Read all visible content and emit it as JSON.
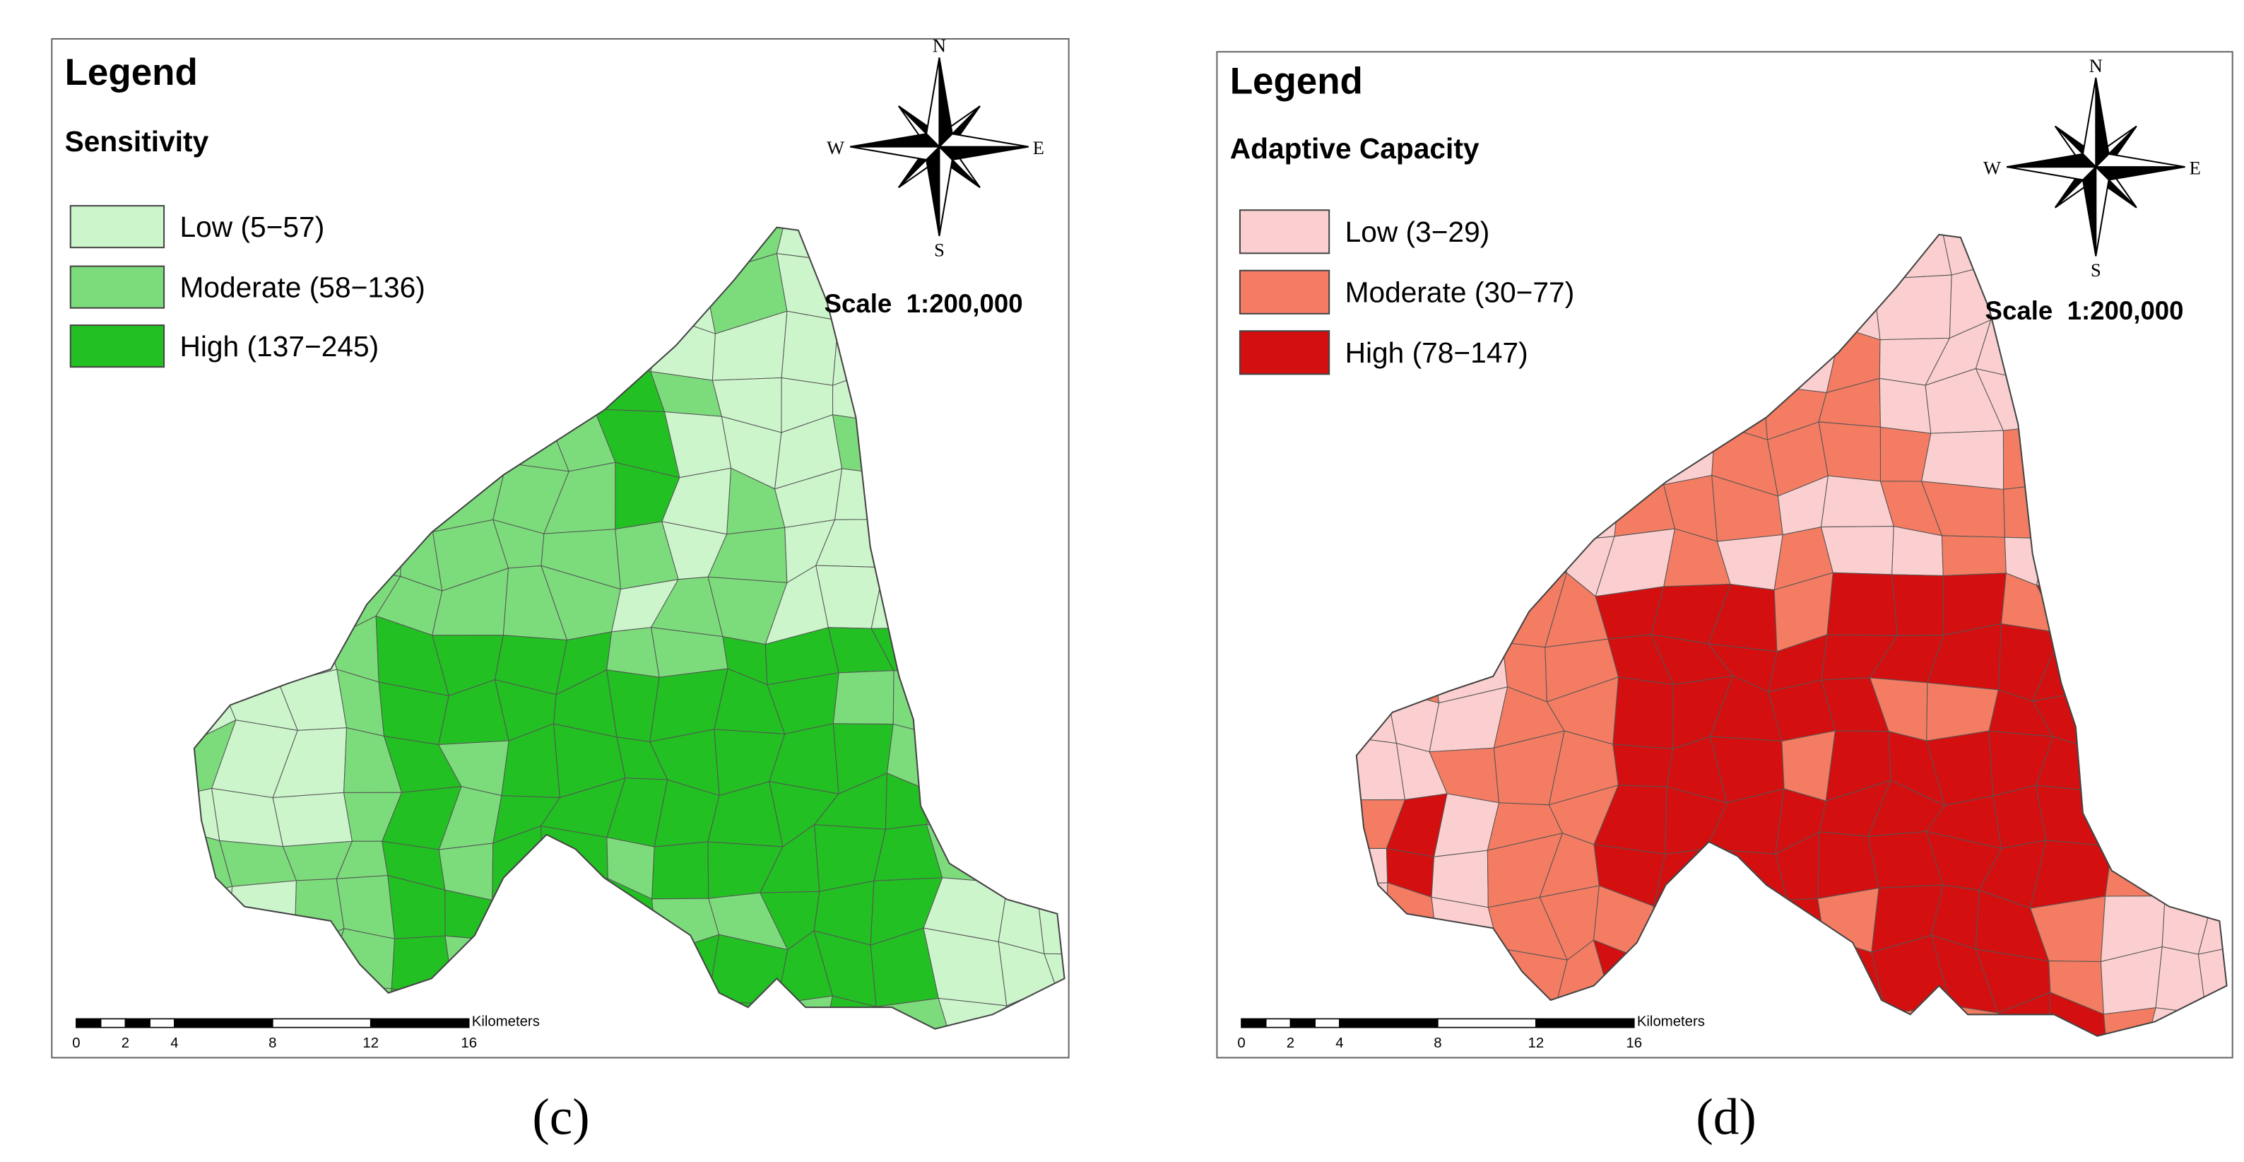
{
  "panels": [
    {
      "legend_title": "Legend",
      "legend_subtitle": "Sensitivity",
      "classes": [
        {
          "label": "Low (5−57)",
          "color": "#ccf5cc"
        },
        {
          "label": "Moderate (58−136)",
          "color": "#7cdc7c"
        },
        {
          "label": "High (137−245)",
          "color": "#22c022"
        }
      ],
      "compass": {
        "north": "N",
        "east": "E",
        "south": "S",
        "west": "W"
      },
      "scale_text": "Scale  1:200,000",
      "scale_bar": {
        "ticks": [
          0,
          2,
          4,
          8,
          12,
          16
        ],
        "unit": "Kilometers"
      },
      "caption": "(c)"
    },
    {
      "legend_title": "Legend",
      "legend_subtitle": "Adaptive Capacity",
      "classes": [
        {
          "label": "Low (3−29)",
          "color": "#fbcfcf"
        },
        {
          "label": "Moderate (30−77)",
          "color": "#f47c62"
        },
        {
          "label": "High (78−147)",
          "color": "#d40f0f"
        }
      ],
      "compass": {
        "north": "N",
        "east": "E",
        "south": "S",
        "west": "W"
      },
      "scale_text": "Scale  1:200,000",
      "scale_bar": {
        "ticks": [
          0,
          2,
          4,
          8,
          12,
          16
        ],
        "unit": "Kilometers"
      },
      "caption": "(d)"
    }
  ]
}
